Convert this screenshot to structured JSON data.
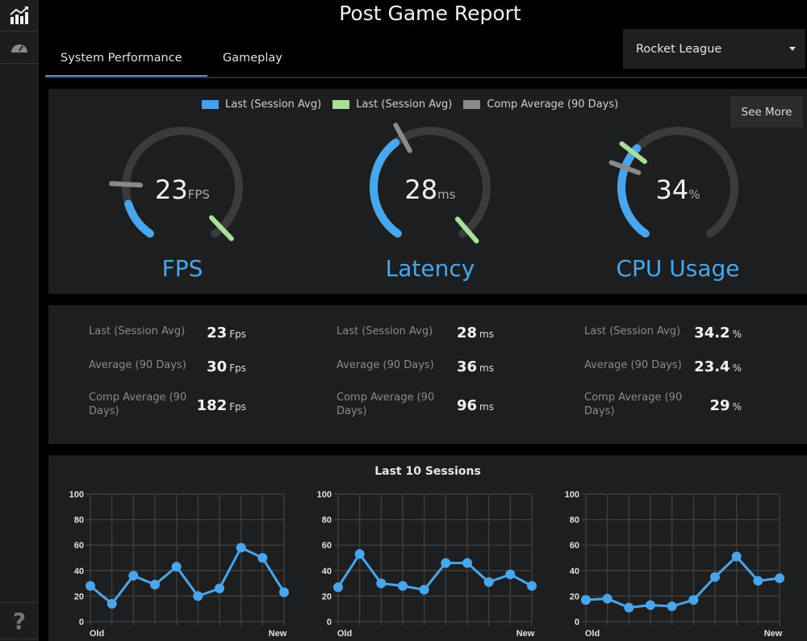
{
  "title": "Post Game Report",
  "sidebar": {
    "items": [
      {
        "icon": "chart-icon"
      },
      {
        "icon": "speedometer-icon"
      }
    ],
    "help_label": "?"
  },
  "tabs": [
    {
      "label": "System Performance",
      "active": true
    },
    {
      "label": "Gameplay",
      "active": false
    }
  ],
  "game_select": {
    "value": "Rocket League"
  },
  "legend": [
    {
      "label": "Last (Session Avg)",
      "color": "#4a9fe8"
    },
    {
      "label": "Last (Session Avg)",
      "color": "#a8e09a"
    },
    {
      "label": "Comp Average (90 Days)",
      "color": "#8a8a8a"
    }
  ],
  "see_more_label": "See More",
  "colors": {
    "accent": "#4aa6ec",
    "green": "#a8e09a",
    "gray_marker": "#8a8a8a",
    "track": "#3a3b3d"
  },
  "gauges": [
    {
      "label": "FPS",
      "value": "23",
      "unit": "FPS",
      "fill": 0.13,
      "gray_marker": 0.2,
      "green_marker": 0.97
    },
    {
      "label": "Latency",
      "value": "28",
      "unit": "ms",
      "fill": 0.37,
      "gray_marker": 0.4,
      "green_marker": 0.98
    },
    {
      "label": "CPU Usage",
      "value": "34",
      "unit": "%",
      "fill": 0.34,
      "gray_marker": 0.26,
      "green_marker": 0.32
    }
  ],
  "stats": [
    {
      "rows": [
        {
          "label": "Last (Session Avg)",
          "value": "23",
          "unit": "Fps"
        },
        {
          "label": "Average (90 Days)",
          "value": "30",
          "unit": "Fps"
        },
        {
          "label": "Comp Average (90 Days)",
          "value": "182",
          "unit": "Fps"
        }
      ]
    },
    {
      "rows": [
        {
          "label": "Last (Session Avg)",
          "value": "28",
          "unit": "ms"
        },
        {
          "label": "Average (90 Days)",
          "value": "36",
          "unit": "ms"
        },
        {
          "label": "Comp Average (90 Days)",
          "value": "96",
          "unit": "ms"
        }
      ]
    },
    {
      "rows": [
        {
          "label": "Last (Session Avg)",
          "value": "34.2",
          "unit": "%"
        },
        {
          "label": "Average (90 Days)",
          "value": "23.4",
          "unit": "%"
        },
        {
          "label": "Comp Average (90 Days)",
          "value": "29",
          "unit": "%"
        }
      ]
    }
  ],
  "sessions_title": "Last 10 Sessions",
  "chart_data": [
    {
      "type": "line",
      "title": "Last 10 Sessions",
      "series_name": "FPS",
      "x_labels": [
        "Old",
        "",
        "",
        "",
        "",
        "",
        "",
        "",
        "",
        "New"
      ],
      "values": [
        28,
        14,
        36,
        29,
        43,
        20,
        26,
        58,
        50,
        23
      ],
      "ylim": [
        0,
        100
      ],
      "yticks": [
        0,
        20,
        40,
        60,
        80,
        100
      ],
      "grid": true
    },
    {
      "type": "line",
      "title": "Last 10 Sessions",
      "series_name": "Latency",
      "x_labels": [
        "Old",
        "",
        "",
        "",
        "",
        "",
        "",
        "",
        "",
        "New"
      ],
      "values": [
        27,
        53,
        30,
        28,
        25,
        46,
        46,
        31,
        37,
        28
      ],
      "ylim": [
        0,
        100
      ],
      "yticks": [
        0,
        20,
        40,
        60,
        80,
        100
      ],
      "grid": true
    },
    {
      "type": "line",
      "title": "Last 10 Sessions",
      "series_name": "CPU Usage",
      "x_labels": [
        "Old",
        "",
        "",
        "",
        "",
        "",
        "",
        "",
        "",
        "New"
      ],
      "values": [
        17,
        18,
        11,
        13,
        12,
        17,
        35,
        51,
        32,
        34
      ],
      "ylim": [
        0,
        100
      ],
      "yticks": [
        0,
        20,
        40,
        60,
        80,
        100
      ],
      "grid": true
    }
  ]
}
